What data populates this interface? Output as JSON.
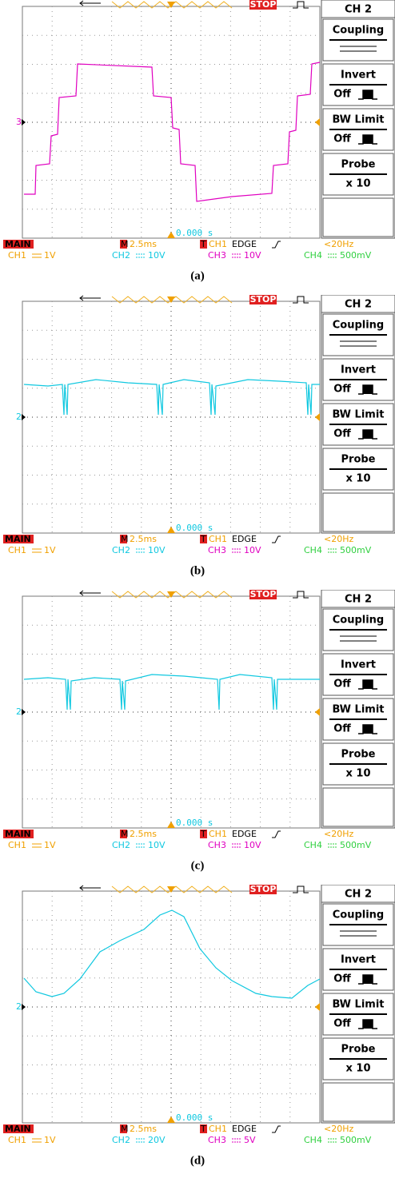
{
  "panels": [
    {
      "caption": "(a)",
      "status": "STOP",
      "marker": "3",
      "time": "0.000 s",
      "menu": {
        "channel": "CH 2",
        "coupling": "Coupling",
        "invert": "Invert",
        "invert_state": "Off",
        "bw_limit": "BW Limit",
        "bw_state": "Off",
        "probe": "Probe",
        "probe_value": "x 10"
      },
      "footer": {
        "mode": "MAIN",
        "timebase_icon": "M",
        "timebase": "2.5ms",
        "trigger_icon": "T",
        "trigger_source": "CH1",
        "trigger_type": "EDGE",
        "frequency": "<20Hz",
        "ch1": "CH1",
        "ch1_scale": "1V",
        "ch2": "CH2",
        "ch2_scale": "10V",
        "ch3": "CH3",
        "ch3_scale": "10V",
        "ch4": "CH4",
        "ch4_scale": "500mV"
      }
    },
    {
      "caption": "(b)",
      "status": "STOP",
      "marker": "2",
      "time": "0.000 s",
      "menu": {
        "channel": "CH 2",
        "coupling": "Coupling",
        "invert": "Invert",
        "invert_state": "Off",
        "bw_limit": "BW Limit",
        "bw_state": "Off",
        "probe": "Probe",
        "probe_value": "x 10"
      },
      "footer": {
        "mode": "MAIN",
        "timebase_icon": "M",
        "timebase": "2.5ms",
        "trigger_icon": "T",
        "trigger_source": "CH1",
        "trigger_type": "EDGE",
        "frequency": "<20Hz",
        "ch1": "CH1",
        "ch1_scale": "1V",
        "ch2": "CH2",
        "ch2_scale": "10V",
        "ch3": "CH3",
        "ch3_scale": "10V",
        "ch4": "CH4",
        "ch4_scale": "500mV"
      }
    },
    {
      "caption": "(c)",
      "status": "STOP",
      "marker": "2",
      "time": "0.000 s",
      "menu": {
        "channel": "CH 2",
        "coupling": "Coupling",
        "invert": "Invert",
        "invert_state": "Off",
        "bw_limit": "BW Limit",
        "bw_state": "Off",
        "probe": "Probe",
        "probe_value": "x 10"
      },
      "footer": {
        "mode": "MAIN",
        "timebase_icon": "M",
        "timebase": "2.5ms",
        "trigger_icon": "T",
        "trigger_source": "CH1",
        "trigger_type": "EDGE",
        "frequency": "<20Hz",
        "ch1": "CH1",
        "ch1_scale": "1V",
        "ch2": "CH2",
        "ch2_scale": "10V",
        "ch3": "CH3",
        "ch3_scale": "10V",
        "ch4": "CH4",
        "ch4_scale": "500mV"
      }
    },
    {
      "caption": "(d)",
      "status": "STOP",
      "marker": "2",
      "time": "0.000 s",
      "menu": {
        "channel": "CH 2",
        "coupling": "Coupling",
        "invert": "Invert",
        "invert_state": "Off",
        "bw_limit": "BW Limit",
        "bw_state": "Off",
        "probe": "Probe",
        "probe_value": "x 10"
      },
      "footer": {
        "mode": "MAIN",
        "timebase_icon": "M",
        "timebase": "2.5ms",
        "trigger_icon": "T",
        "trigger_source": "CH1",
        "trigger_type": "EDGE",
        "frequency": "<20Hz",
        "ch1": "CH1",
        "ch1_scale": "1V",
        "ch2": "CH2",
        "ch2_scale": "20V",
        "ch3": "CH3",
        "ch3_scale": "5V",
        "ch4": "CH4",
        "ch4_scale": "500mV"
      }
    }
  ]
}
